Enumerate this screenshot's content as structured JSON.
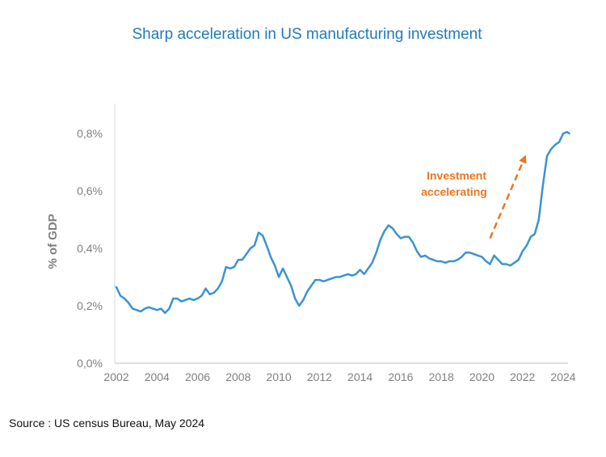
{
  "title": "Sharp acceleration in US manufacturing investment",
  "source": "Source : US census Bureau, May 2024",
  "colors": {
    "title": "#1F7BB6",
    "line": "#3A93D2",
    "annotation": "#E87722",
    "axis": "#7f7f7f"
  },
  "chart_data": {
    "type": "line",
    "title": "Sharp acceleration in US manufacturing investment",
    "ylabel": "% of GDP",
    "xlabel": "",
    "ylim": [
      0,
      0.9
    ],
    "xlim": [
      2002,
      2024.3
    ],
    "x_ticks": [
      2002,
      2004,
      2006,
      2008,
      2010,
      2012,
      2014,
      2016,
      2018,
      2020,
      2022,
      2024
    ],
    "x_tick_labels": [
      "2002",
      "2004",
      "2006",
      "2008",
      "2010",
      "2012",
      "2014",
      "2016",
      "2018",
      "2020",
      "2022",
      "2024"
    ],
    "y_ticks": [
      0,
      0.2,
      0.4,
      0.6,
      0.8
    ],
    "y_tick_labels": [
      "0,0%",
      "0,2%",
      "0,4%",
      "0,6%",
      "0,8%"
    ],
    "grid": false,
    "legend": "none",
    "series": [
      {
        "values": [
          [
            2002.0,
            0.265
          ],
          [
            2002.2,
            0.235
          ],
          [
            2002.4,
            0.225
          ],
          [
            2002.6,
            0.21
          ],
          [
            2002.8,
            0.19
          ],
          [
            2003.0,
            0.185
          ],
          [
            2003.2,
            0.18
          ],
          [
            2003.4,
            0.19
          ],
          [
            2003.6,
            0.195
          ],
          [
            2003.8,
            0.19
          ],
          [
            2004.0,
            0.185
          ],
          [
            2004.2,
            0.19
          ],
          [
            2004.4,
            0.175
          ],
          [
            2004.6,
            0.19
          ],
          [
            2004.8,
            0.225
          ],
          [
            2005.0,
            0.225
          ],
          [
            2005.2,
            0.215
          ],
          [
            2005.4,
            0.22
          ],
          [
            2005.6,
            0.225
          ],
          [
            2005.8,
            0.22
          ],
          [
            2006.0,
            0.225
          ],
          [
            2006.2,
            0.235
          ],
          [
            2006.4,
            0.26
          ],
          [
            2006.6,
            0.24
          ],
          [
            2006.8,
            0.245
          ],
          [
            2007.0,
            0.26
          ],
          [
            2007.2,
            0.285
          ],
          [
            2007.4,
            0.335
          ],
          [
            2007.6,
            0.33
          ],
          [
            2007.8,
            0.335
          ],
          [
            2008.0,
            0.36
          ],
          [
            2008.2,
            0.36
          ],
          [
            2008.4,
            0.38
          ],
          [
            2008.6,
            0.4
          ],
          [
            2008.8,
            0.41
          ],
          [
            2009.0,
            0.455
          ],
          [
            2009.2,
            0.445
          ],
          [
            2009.4,
            0.41
          ],
          [
            2009.6,
            0.37
          ],
          [
            2009.8,
            0.34
          ],
          [
            2010.0,
            0.3
          ],
          [
            2010.2,
            0.33
          ],
          [
            2010.4,
            0.3
          ],
          [
            2010.6,
            0.27
          ],
          [
            2010.8,
            0.225
          ],
          [
            2011.0,
            0.2
          ],
          [
            2011.2,
            0.22
          ],
          [
            2011.4,
            0.25
          ],
          [
            2011.6,
            0.27
          ],
          [
            2011.8,
            0.29
          ],
          [
            2012.0,
            0.29
          ],
          [
            2012.2,
            0.285
          ],
          [
            2012.4,
            0.29
          ],
          [
            2012.6,
            0.295
          ],
          [
            2012.8,
            0.3
          ],
          [
            2013.0,
            0.3
          ],
          [
            2013.2,
            0.305
          ],
          [
            2013.4,
            0.31
          ],
          [
            2013.6,
            0.305
          ],
          [
            2013.8,
            0.31
          ],
          [
            2014.0,
            0.325
          ],
          [
            2014.2,
            0.31
          ],
          [
            2014.4,
            0.33
          ],
          [
            2014.6,
            0.35
          ],
          [
            2014.8,
            0.385
          ],
          [
            2015.0,
            0.43
          ],
          [
            2015.2,
            0.46
          ],
          [
            2015.4,
            0.48
          ],
          [
            2015.6,
            0.47
          ],
          [
            2015.8,
            0.45
          ],
          [
            2016.0,
            0.435
          ],
          [
            2016.2,
            0.44
          ],
          [
            2016.4,
            0.44
          ],
          [
            2016.6,
            0.42
          ],
          [
            2016.8,
            0.39
          ],
          [
            2017.0,
            0.37
          ],
          [
            2017.2,
            0.375
          ],
          [
            2017.4,
            0.365
          ],
          [
            2017.6,
            0.36
          ],
          [
            2017.8,
            0.355
          ],
          [
            2018.0,
            0.355
          ],
          [
            2018.2,
            0.35
          ],
          [
            2018.4,
            0.355
          ],
          [
            2018.6,
            0.355
          ],
          [
            2018.8,
            0.36
          ],
          [
            2019.0,
            0.37
          ],
          [
            2019.2,
            0.385
          ],
          [
            2019.4,
            0.385
          ],
          [
            2019.6,
            0.38
          ],
          [
            2019.8,
            0.375
          ],
          [
            2020.0,
            0.37
          ],
          [
            2020.2,
            0.355
          ],
          [
            2020.4,
            0.345
          ],
          [
            2020.6,
            0.375
          ],
          [
            2020.8,
            0.36
          ],
          [
            2021.0,
            0.345
          ],
          [
            2021.2,
            0.345
          ],
          [
            2021.4,
            0.34
          ],
          [
            2021.6,
            0.35
          ],
          [
            2021.8,
            0.36
          ],
          [
            2022.0,
            0.39
          ],
          [
            2022.2,
            0.41
          ],
          [
            2022.4,
            0.44
          ],
          [
            2022.6,
            0.45
          ],
          [
            2022.8,
            0.5
          ],
          [
            2023.0,
            0.62
          ],
          [
            2023.2,
            0.72
          ],
          [
            2023.4,
            0.745
          ],
          [
            2023.6,
            0.76
          ],
          [
            2023.8,
            0.77
          ],
          [
            2024.0,
            0.8
          ],
          [
            2024.2,
            0.805
          ],
          [
            2024.3,
            0.8
          ]
        ]
      }
    ],
    "annotations": [
      {
        "text_lines": [
          "Investment",
          "accelerating"
        ],
        "color": "#E87722",
        "style": "dashed-arrow",
        "arrow_from": [
          2020.4,
          0.435
        ],
        "arrow_to": [
          2022.1,
          0.715
        ]
      }
    ]
  }
}
